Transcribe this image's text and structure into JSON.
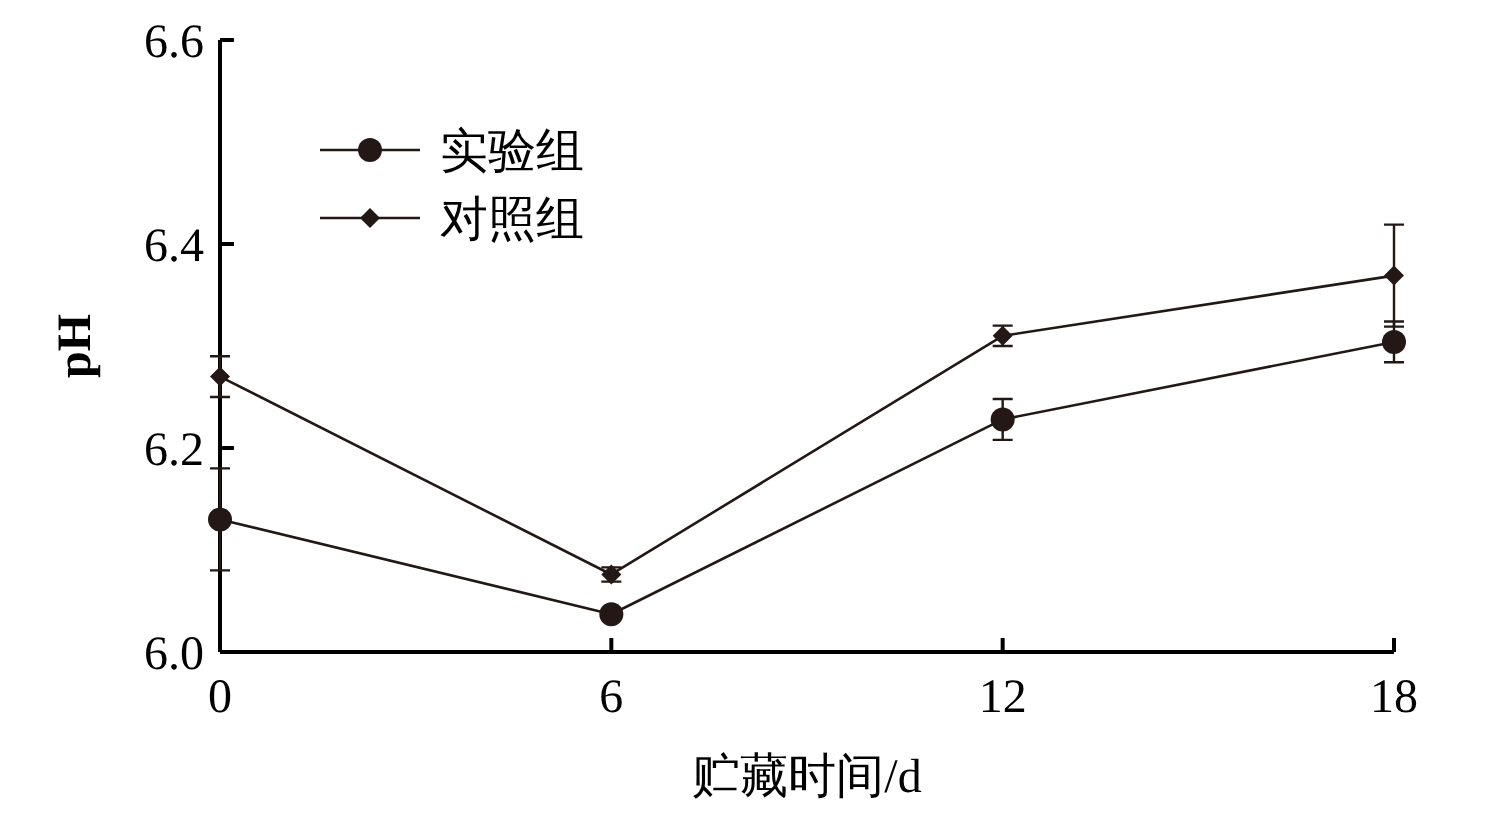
{
  "chart_data": {
    "type": "line",
    "xlabel": "贮藏时间/d",
    "ylabel": "pH",
    "x": [
      0,
      6,
      12,
      18
    ],
    "xlim": [
      0,
      18
    ],
    "xticks": [
      0,
      6,
      12,
      18
    ],
    "ylim": [
      6.0,
      6.6
    ],
    "yticks": [
      {
        "value": 6.0,
        "label": "6.0"
      },
      {
        "value": 6.2,
        "label": "6.2"
      },
      {
        "value": 6.4,
        "label": "6.4"
      },
      {
        "value": 6.6,
        "label": "6.6"
      }
    ],
    "grid": false,
    "legend": "top left",
    "series": [
      {
        "name": "实验组",
        "color": "#231815",
        "marker": "circle",
        "values": [
          6.13,
          6.037,
          6.228,
          6.304
        ],
        "errors": [
          0.05,
          0.005,
          0.02,
          0.02
        ]
      },
      {
        "name": "对照组",
        "color": "#231815",
        "marker": "diamond",
        "values": [
          6.27,
          6.076,
          6.31,
          6.369
        ],
        "errors": [
          0.02,
          0.007,
          0.01,
          0.05
        ]
      }
    ]
  }
}
